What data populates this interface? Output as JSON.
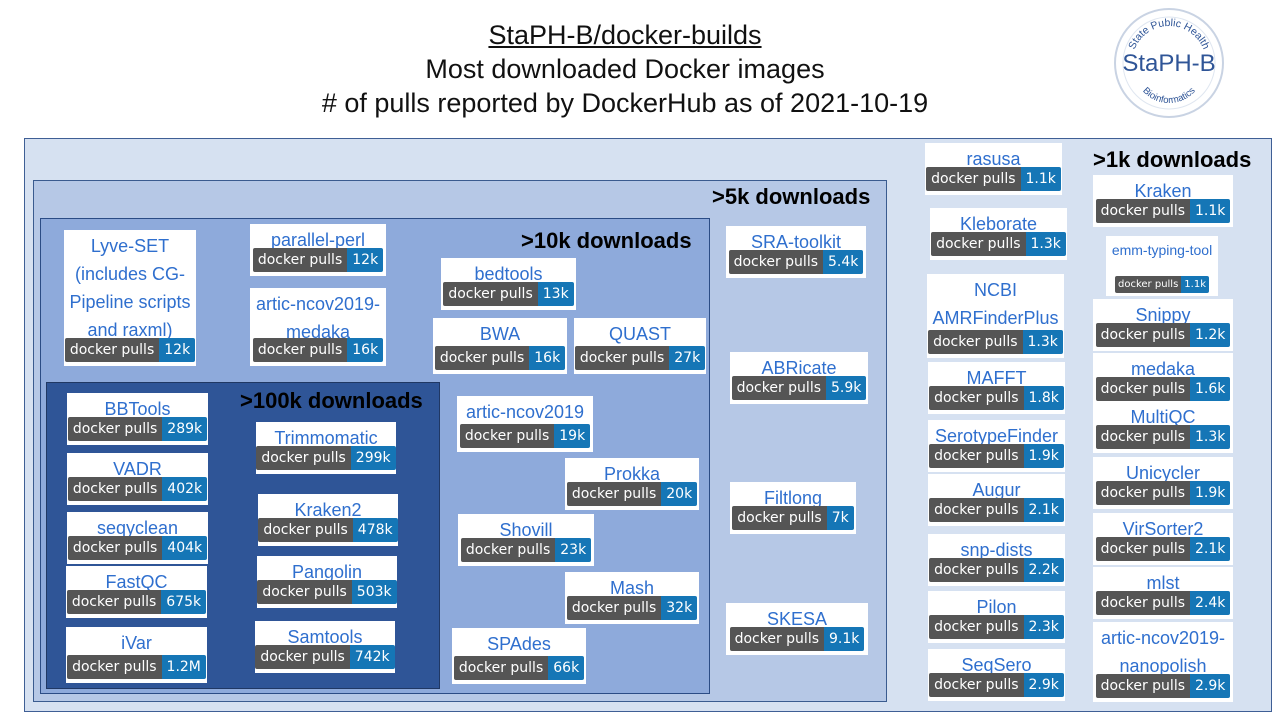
{
  "header": {
    "title": "StaPH-B/docker-builds",
    "subtitle": "Most downloaded Docker images",
    "caption": "# of pulls reported by DockerHub as of 2021-10-19"
  },
  "logo": {
    "name": "StaPH-B",
    "top_arc": "State Public Health",
    "bottom_arc": "Bioinformatics"
  },
  "zones": {
    "gt1k": ">1k downloads",
    "gt5k": ">5k downloads",
    "gt10k": ">10k downloads",
    "gt100k": ">100k downloads"
  },
  "badge_label": "docker pulls",
  "colors": {
    "link_blue": "#2f6fce",
    "badge_dark": "#555555",
    "badge_blue": "#1576b6",
    "zone_1k": "#d6e1f1",
    "zone_5k": "#b6c8e6",
    "zone_10k": "#8eaadb",
    "zone_100k": "#2f5597"
  },
  "images": [
    {
      "name": "rasusa",
      "pulls": "1.1k",
      "group": ">1k"
    },
    {
      "name": "Kleborate",
      "pulls": "1.3k",
      "group": ">1k"
    },
    {
      "name": "NCBI AMRFinderPlus",
      "pulls": "1.3k",
      "group": ">1k"
    },
    {
      "name": "MAFFT",
      "pulls": "1.8k",
      "group": ">1k"
    },
    {
      "name": "SerotypeFinder",
      "pulls": "1.9k",
      "group": ">1k"
    },
    {
      "name": "Augur",
      "pulls": "2.1k",
      "group": ">1k"
    },
    {
      "name": "snp-dists",
      "pulls": "2.2k",
      "group": ">1k"
    },
    {
      "name": "Pilon",
      "pulls": "2.3k",
      "group": ">1k"
    },
    {
      "name": "SeqSero",
      "pulls": "2.9k",
      "group": ">1k"
    },
    {
      "name": "Kraken",
      "pulls": "1.1k",
      "group": ">1k"
    },
    {
      "name": "emm-typing-tool",
      "pulls": "1.1k",
      "group": ">1k"
    },
    {
      "name": "Snippy",
      "pulls": "1.2k",
      "group": ">1k"
    },
    {
      "name": "medaka",
      "pulls": "1.6k",
      "group": ">1k"
    },
    {
      "name": "MultiQC",
      "pulls": "1.3k",
      "group": ">1k"
    },
    {
      "name": "Unicycler",
      "pulls": "1.9k",
      "group": ">1k"
    },
    {
      "name": "VirSorter2",
      "pulls": "2.1k",
      "group": ">1k"
    },
    {
      "name": "mlst",
      "pulls": "2.4k",
      "group": ">1k"
    },
    {
      "name": "artic-ncov2019-nanopolish",
      "pulls": "2.9k",
      "group": ">1k"
    },
    {
      "name": "SRA-toolkit",
      "pulls": "5.4k",
      "group": ">5k"
    },
    {
      "name": "ABRicate",
      "pulls": "5.9k",
      "group": ">5k"
    },
    {
      "name": "Filtlong",
      "pulls": "7k",
      "group": ">5k"
    },
    {
      "name": "SKESA",
      "pulls": "9.1k",
      "group": ">5k"
    },
    {
      "name": "Lyve-SET (includes CG-Pipeline scripts and raxml)",
      "pulls": "12k",
      "group": ">10k"
    },
    {
      "name": "parallel-perl",
      "pulls": "12k",
      "group": ">10k"
    },
    {
      "name": "artic-ncov2019-medaka",
      "pulls": "16k",
      "group": ">10k"
    },
    {
      "name": "bedtools",
      "pulls": "13k",
      "group": ">10k"
    },
    {
      "name": "BWA",
      "pulls": "16k",
      "group": ">10k"
    },
    {
      "name": "QUAST",
      "pulls": "27k",
      "group": ">10k"
    },
    {
      "name": "artic-ncov2019",
      "pulls": "19k",
      "group": ">10k"
    },
    {
      "name": "Prokka",
      "pulls": "20k",
      "group": ">10k"
    },
    {
      "name": "Shovill",
      "pulls": "23k",
      "group": ">10k"
    },
    {
      "name": "Mash",
      "pulls": "32k",
      "group": ">10k"
    },
    {
      "name": "SPAdes",
      "pulls": "66k",
      "group": ">10k"
    },
    {
      "name": "BBTools",
      "pulls": "289k",
      "group": ">100k"
    },
    {
      "name": "VADR",
      "pulls": "402k",
      "group": ">100k"
    },
    {
      "name": "seqyclean",
      "pulls": "404k",
      "group": ">100k"
    },
    {
      "name": "FastQC",
      "pulls": "675k",
      "group": ">100k"
    },
    {
      "name": "iVar",
      "pulls": "1.2M",
      "group": ">100k"
    },
    {
      "name": "Trimmomatic",
      "pulls": "299k",
      "group": ">100k"
    },
    {
      "name": "Kraken2",
      "pulls": "478k",
      "group": ">100k"
    },
    {
      "name": "Pangolin",
      "pulls": "503k",
      "group": ">100k"
    },
    {
      "name": "Samtools",
      "pulls": "742k",
      "group": ">100k"
    }
  ]
}
